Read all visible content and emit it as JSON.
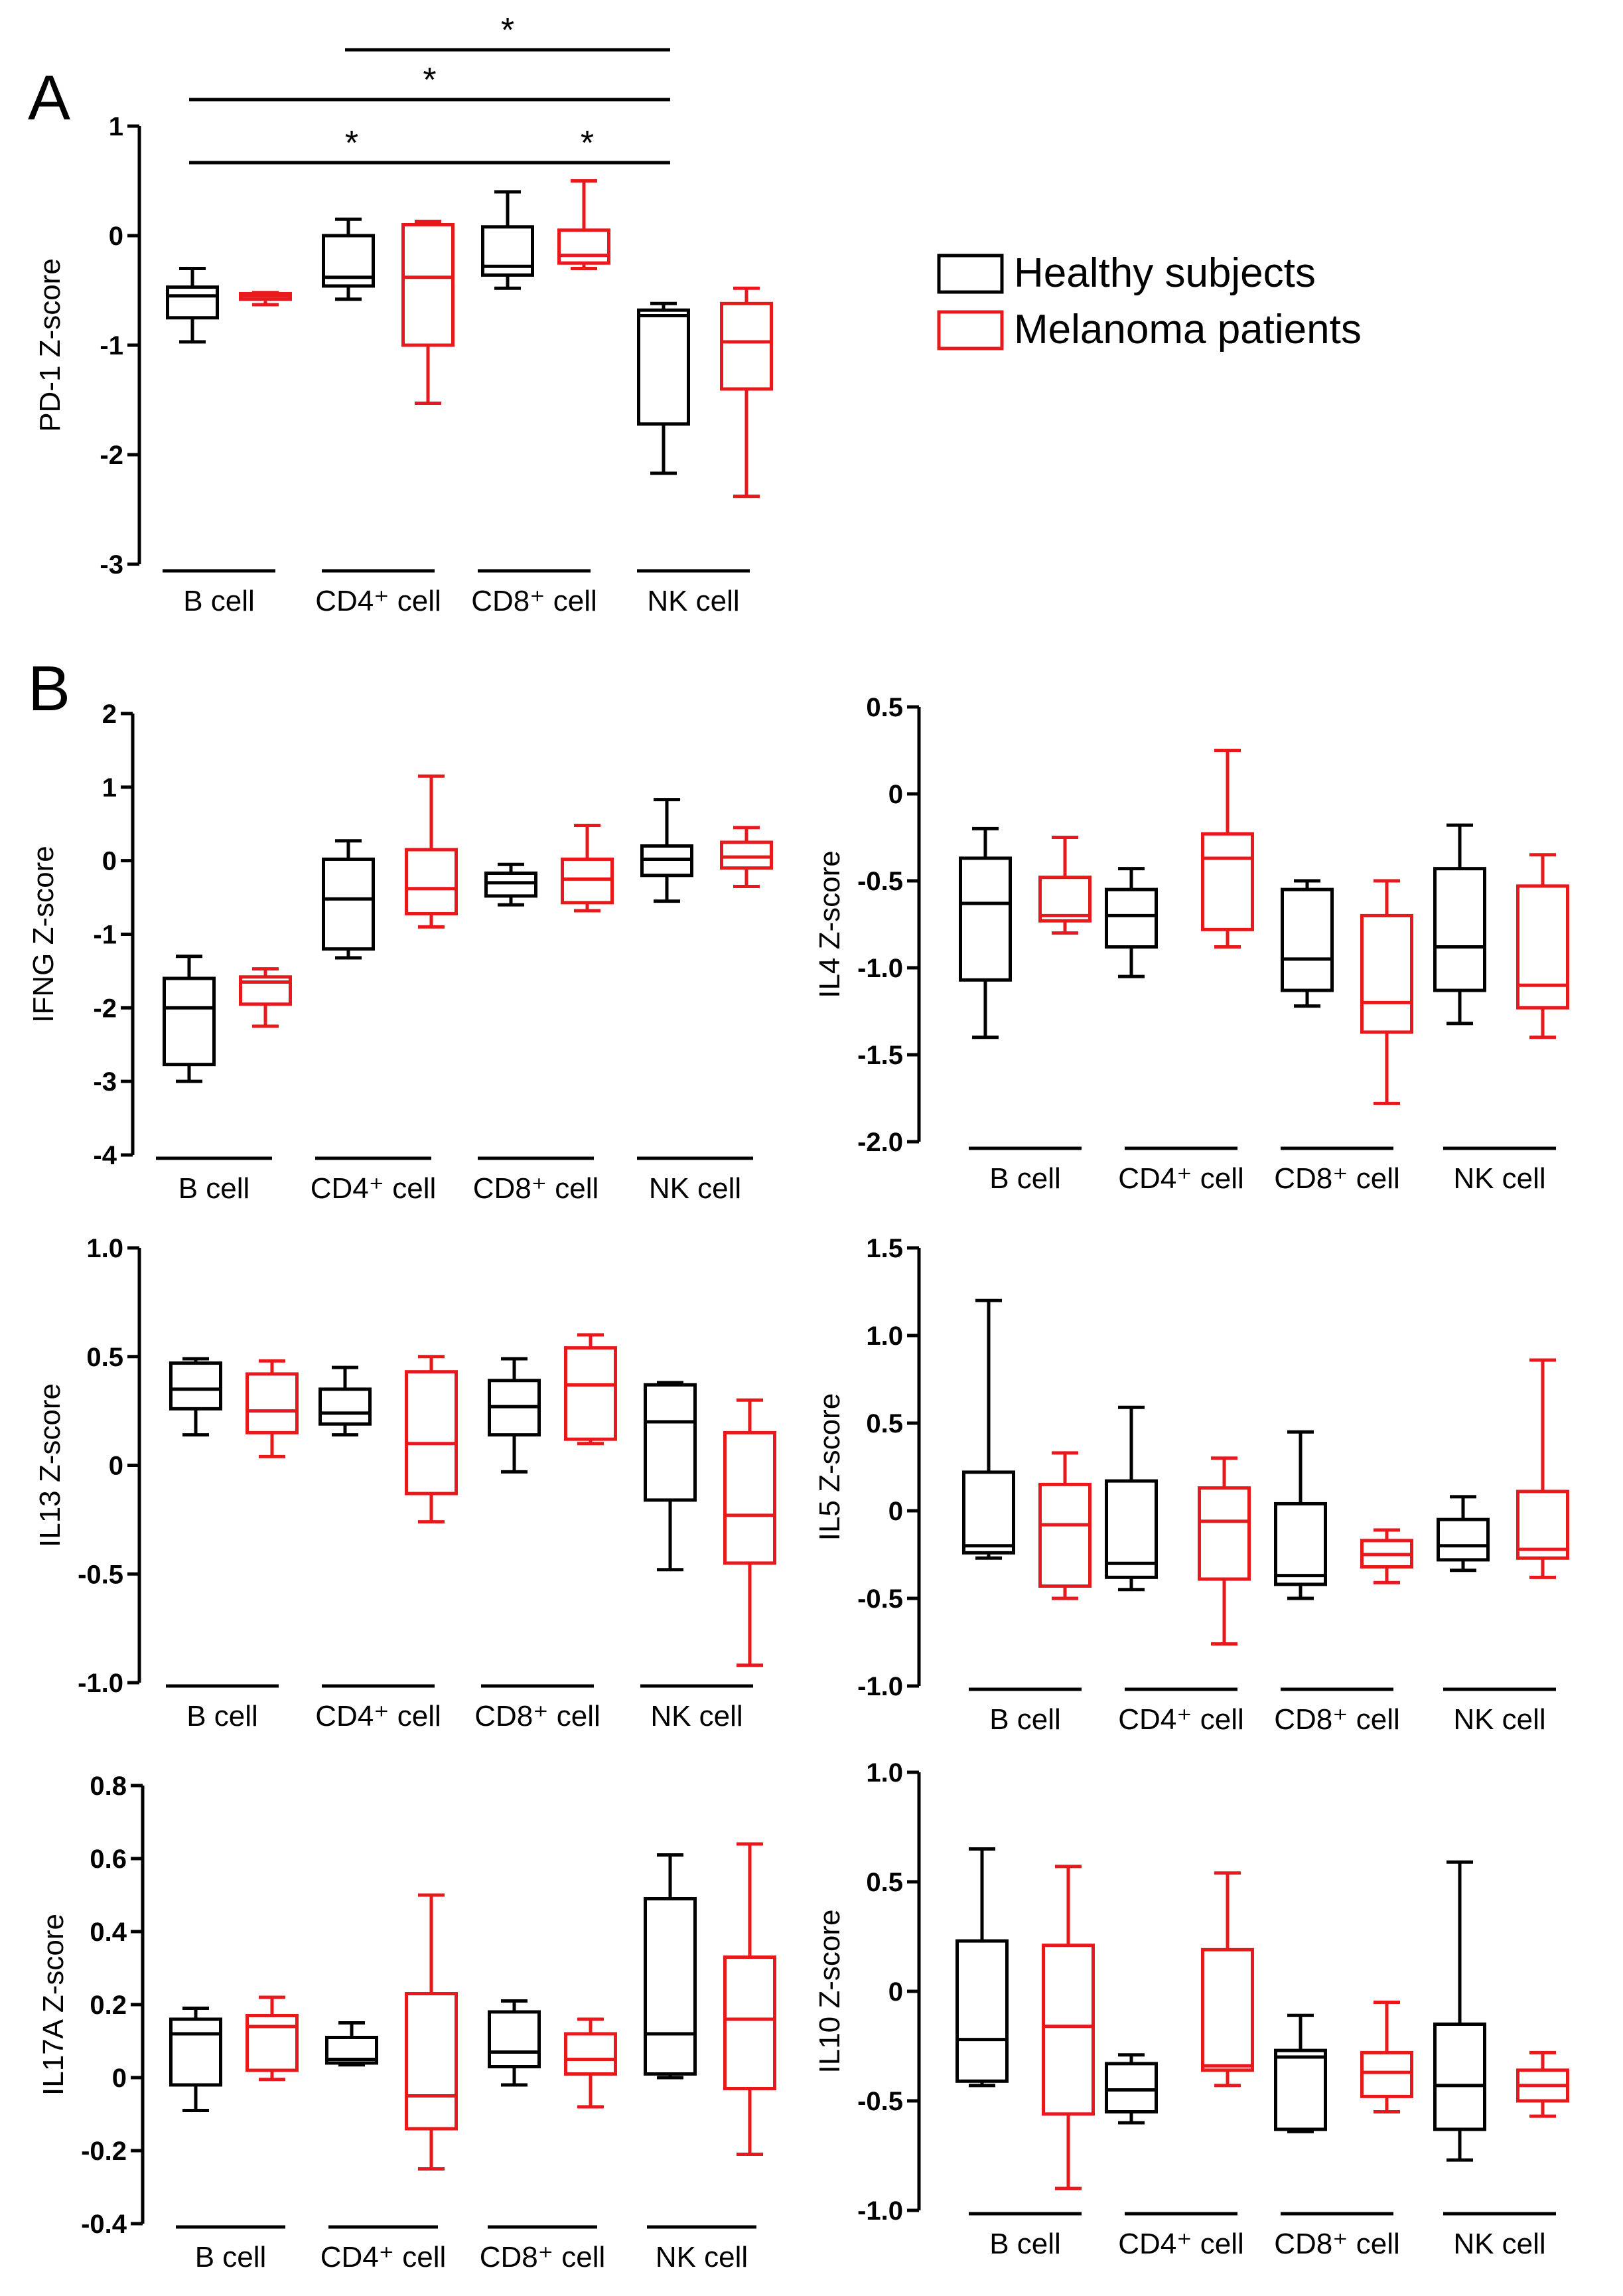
{
  "panel_labels": [
    "A",
    "B"
  ],
  "legend": {
    "entries": [
      {
        "name": "Healthy subjects",
        "color": "#000000"
      },
      {
        "name": "Melanoma patients",
        "color": "#e8191c"
      }
    ]
  },
  "chart_data": [
    {
      "type": "box",
      "panel": "A",
      "ylabel": "PD-1 Z-score",
      "ylim": [
        -3,
        1
      ],
      "yticks": [
        -3,
        -2,
        -1,
        0,
        1
      ],
      "categories": [
        "B cell",
        "CD4⁺ cell",
        "CD8⁺ cell",
        "NK cell"
      ],
      "significance": [
        {
          "from": 1,
          "to": 3,
          "label": "*"
        },
        {
          "from": 0,
          "to": 3,
          "label": "*"
        },
        {
          "from": 0,
          "to": 2,
          "label": "*"
        },
        {
          "from": 2,
          "to": 3,
          "label": "*"
        }
      ],
      "series": [
        {
          "name": "Healthy subjects",
          "color": "#000000",
          "boxes": [
            {
              "min": -0.97,
              "q1": -0.75,
              "median": -0.55,
              "q3": -0.47,
              "max": -0.3
            },
            {
              "min": -0.58,
              "q1": -0.46,
              "median": -0.38,
              "q3": 0.0,
              "max": 0.15
            },
            {
              "min": -0.48,
              "q1": -0.36,
              "median": -0.28,
              "q3": 0.08,
              "max": 0.4
            },
            {
              "min": -2.17,
              "q1": -1.72,
              "median": -0.73,
              "q3": -0.68,
              "max": -0.62
            }
          ]
        },
        {
          "name": "Melanoma patients",
          "color": "#e8191c",
          "boxes": [
            {
              "min": -0.63,
              "q1": -0.58,
              "median": -0.55,
              "q3": -0.53,
              "max": -0.52
            },
            {
              "min": -1.53,
              "q1": -1.0,
              "median": -0.38,
              "q3": 0.1,
              "max": 0.13
            },
            {
              "min": -0.3,
              "q1": -0.25,
              "median": -0.18,
              "q3": 0.05,
              "max": 0.5
            },
            {
              "min": -2.38,
              "q1": -1.4,
              "median": -0.97,
              "q3": -0.62,
              "max": -0.48
            }
          ]
        }
      ]
    },
    {
      "type": "box",
      "panel": "B",
      "ylabel": "IFNG Z-score",
      "ylim": [
        -4,
        2
      ],
      "yticks": [
        -4,
        -3,
        -2,
        -1,
        0,
        1,
        2
      ],
      "categories": [
        "B cell",
        "CD4⁺ cell",
        "CD8⁺ cell",
        "NK cell"
      ],
      "series": [
        {
          "name": "Healthy subjects",
          "color": "#000000",
          "boxes": [
            {
              "min": -3.0,
              "q1": -2.77,
              "median": -2.0,
              "q3": -1.6,
              "max": -1.3
            },
            {
              "min": -1.32,
              "q1": -1.2,
              "median": -0.52,
              "q3": 0.02,
              "max": 0.27
            },
            {
              "min": -0.6,
              "q1": -0.48,
              "median": -0.3,
              "q3": -0.17,
              "max": -0.05
            },
            {
              "min": -0.55,
              "q1": -0.2,
              "median": 0.02,
              "q3": 0.2,
              "max": 0.83
            }
          ]
        },
        {
          "name": "Melanoma patients",
          "color": "#e8191c",
          "boxes": [
            {
              "min": -2.25,
              "q1": -1.95,
              "median": -1.65,
              "q3": -1.58,
              "max": -1.47
            },
            {
              "min": -0.9,
              "q1": -0.72,
              "median": -0.38,
              "q3": 0.15,
              "max": 1.15
            },
            {
              "min": -0.68,
              "q1": -0.57,
              "median": -0.25,
              "q3": 0.02,
              "max": 0.48
            },
            {
              "min": -0.35,
              "q1": -0.1,
              "median": 0.05,
              "q3": 0.25,
              "max": 0.45
            }
          ]
        }
      ]
    },
    {
      "type": "box",
      "panel": "B",
      "ylabel": "IL4 Z-score",
      "ylim": [
        -2.0,
        0.5
      ],
      "yticks": [
        -2.0,
        -1.5,
        -1.0,
        -0.5,
        0,
        0.5
      ],
      "categories": [
        "B cell",
        "CD4⁺ cell",
        "CD8⁺ cell",
        "NK cell"
      ],
      "series": [
        {
          "name": "Healthy subjects",
          "color": "#000000",
          "boxes": [
            {
              "min": -1.4,
              "q1": -1.07,
              "median": -0.63,
              "q3": -0.37,
              "max": -0.2
            },
            {
              "min": -1.05,
              "q1": -0.88,
              "median": -0.7,
              "q3": -0.55,
              "max": -0.43
            },
            {
              "min": -1.22,
              "q1": -1.13,
              "median": -0.95,
              "q3": -0.55,
              "max": -0.5
            },
            {
              "min": -1.32,
              "q1": -1.13,
              "median": -0.88,
              "q3": -0.43,
              "max": -0.18
            }
          ]
        },
        {
          "name": "Melanoma patients",
          "color": "#e8191c",
          "boxes": [
            {
              "min": -0.8,
              "q1": -0.73,
              "median": -0.7,
              "q3": -0.48,
              "max": -0.25
            },
            {
              "min": -0.88,
              "q1": -0.78,
              "median": -0.37,
              "q3": -0.23,
              "max": 0.25
            },
            {
              "min": -1.78,
              "q1": -1.37,
              "median": -1.2,
              "q3": -0.7,
              "max": -0.5
            },
            {
              "min": -1.4,
              "q1": -1.23,
              "median": -1.1,
              "q3": -0.53,
              "max": -0.35
            }
          ]
        }
      ]
    },
    {
      "type": "box",
      "panel": "B",
      "ylabel": "IL13 Z-score",
      "ylim": [
        -1.0,
        1.0
      ],
      "yticks": [
        -1.0,
        -0.5,
        0,
        0.5,
        1.0
      ],
      "categories": [
        "B cell",
        "CD4⁺ cell",
        "CD8⁺ cell",
        "NK cell"
      ],
      "series": [
        {
          "name": "Healthy subjects",
          "color": "#000000",
          "boxes": [
            {
              "min": 0.14,
              "q1": 0.26,
              "median": 0.35,
              "q3": 0.47,
              "max": 0.49
            },
            {
              "min": 0.14,
              "q1": 0.19,
              "median": 0.24,
              "q3": 0.35,
              "max": 0.45
            },
            {
              "min": -0.03,
              "q1": 0.14,
              "median": 0.27,
              "q3": 0.39,
              "max": 0.49
            },
            {
              "min": -0.48,
              "q1": -0.16,
              "median": 0.2,
              "q3": 0.37,
              "max": 0.38
            }
          ]
        },
        {
          "name": "Melanoma patients",
          "color": "#e8191c",
          "boxes": [
            {
              "min": 0.04,
              "q1": 0.15,
              "median": 0.25,
              "q3": 0.42,
              "max": 0.48
            },
            {
              "min": -0.26,
              "q1": -0.13,
              "median": 0.1,
              "q3": 0.43,
              "max": 0.5
            },
            {
              "min": 0.1,
              "q1": 0.12,
              "median": 0.37,
              "q3": 0.54,
              "max": 0.6
            },
            {
              "min": -0.92,
              "q1": -0.45,
              "median": -0.23,
              "q3": 0.15,
              "max": 0.3
            }
          ]
        }
      ]
    },
    {
      "type": "box",
      "panel": "B",
      "ylabel": "IL5 Z-score",
      "ylim": [
        -1.0,
        1.5
      ],
      "yticks": [
        -1.0,
        -0.5,
        0,
        0.5,
        1.0,
        1.5
      ],
      "categories": [
        "B cell",
        "CD4⁺ cell",
        "CD8⁺ cell",
        "NK cell"
      ],
      "series": [
        {
          "name": "Healthy subjects",
          "color": "#000000",
          "boxes": [
            {
              "min": -0.27,
              "q1": -0.24,
              "median": -0.2,
              "q3": 0.22,
              "max": 1.2
            },
            {
              "min": -0.45,
              "q1": -0.38,
              "median": -0.3,
              "q3": 0.17,
              "max": 0.59
            },
            {
              "min": -0.5,
              "q1": -0.42,
              "median": -0.37,
              "q3": 0.04,
              "max": 0.45
            },
            {
              "min": -0.34,
              "q1": -0.28,
              "median": -0.2,
              "q3": -0.05,
              "max": 0.08
            }
          ]
        },
        {
          "name": "Melanoma patients",
          "color": "#e8191c",
          "boxes": [
            {
              "min": -0.5,
              "q1": -0.43,
              "median": -0.08,
              "q3": 0.15,
              "max": 0.33
            },
            {
              "min": -0.76,
              "q1": -0.39,
              "median": -0.06,
              "q3": 0.13,
              "max": 0.3
            },
            {
              "min": -0.41,
              "q1": -0.32,
              "median": -0.25,
              "q3": -0.17,
              "max": -0.11
            },
            {
              "min": -0.38,
              "q1": -0.27,
              "median": -0.22,
              "q3": 0.11,
              "max": 0.86
            }
          ]
        }
      ]
    },
    {
      "type": "box",
      "panel": "B",
      "ylabel": "IL17A Z-score",
      "ylim": [
        -0.4,
        0.8
      ],
      "yticks": [
        -0.4,
        -0.2,
        0,
        0.2,
        0.4,
        0.6,
        0.8
      ],
      "categories": [
        "B cell",
        "CD4⁺ cell",
        "CD8⁺ cell",
        "NK cell"
      ],
      "series": [
        {
          "name": "Healthy subjects",
          "color": "#000000",
          "boxes": [
            {
              "min": -0.09,
              "q1": -0.02,
              "median": 0.12,
              "q3": 0.16,
              "max": 0.19
            },
            {
              "min": 0.035,
              "q1": 0.04,
              "median": 0.05,
              "q3": 0.11,
              "max": 0.15
            },
            {
              "min": -0.02,
              "q1": 0.03,
              "median": 0.07,
              "q3": 0.18,
              "max": 0.21
            },
            {
              "min": 0.0,
              "q1": 0.01,
              "median": 0.12,
              "q3": 0.49,
              "max": 0.61
            }
          ]
        },
        {
          "name": "Melanoma patients",
          "color": "#e8191c",
          "boxes": [
            {
              "min": -0.005,
              "q1": 0.02,
              "median": 0.14,
              "q3": 0.17,
              "max": 0.22
            },
            {
              "min": -0.25,
              "q1": -0.14,
              "median": -0.05,
              "q3": 0.23,
              "max": 0.5
            },
            {
              "min": -0.08,
              "q1": 0.01,
              "median": 0.05,
              "q3": 0.12,
              "max": 0.16
            },
            {
              "min": -0.21,
              "q1": -0.03,
              "median": 0.16,
              "q3": 0.33,
              "max": 0.64
            }
          ]
        }
      ]
    },
    {
      "type": "box",
      "panel": "B",
      "ylabel": "IL10 Z-score",
      "ylim": [
        -1.0,
        1.0
      ],
      "yticks": [
        -1.0,
        -0.5,
        0,
        0.5,
        1.0
      ],
      "categories": [
        "B cell",
        "CD4⁺ cell",
        "CD8⁺ cell",
        "NK cell"
      ],
      "series": [
        {
          "name": "Healthy subjects",
          "color": "#000000",
          "boxes": [
            {
              "min": -0.43,
              "q1": -0.41,
              "median": -0.22,
              "q3": 0.23,
              "max": 0.65
            },
            {
              "min": -0.6,
              "q1": -0.55,
              "median": -0.45,
              "q3": -0.33,
              "max": -0.29
            },
            {
              "min": -0.64,
              "q1": -0.63,
              "median": -0.3,
              "q3": -0.27,
              "max": -0.11
            },
            {
              "min": -0.77,
              "q1": -0.63,
              "median": -0.43,
              "q3": -0.15,
              "max": 0.59
            }
          ]
        },
        {
          "name": "Melanoma patients",
          "color": "#e8191c",
          "boxes": [
            {
              "min": -0.9,
              "q1": -0.56,
              "median": -0.16,
              "q3": 0.21,
              "max": 0.57
            },
            {
              "min": -0.43,
              "q1": -0.36,
              "median": -0.34,
              "q3": 0.19,
              "max": 0.54
            },
            {
              "min": -0.55,
              "q1": -0.48,
              "median": -0.37,
              "q3": -0.28,
              "max": -0.05
            },
            {
              "min": -0.57,
              "q1": -0.5,
              "median": -0.43,
              "q3": -0.36,
              "max": -0.28
            }
          ]
        }
      ]
    }
  ]
}
